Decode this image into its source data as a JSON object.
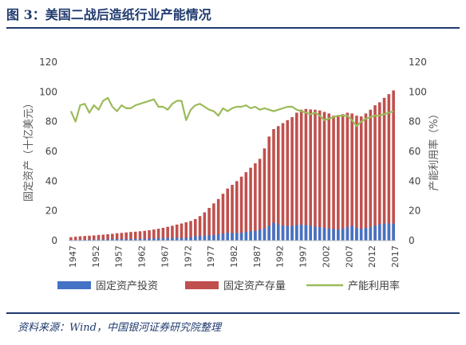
{
  "header": {
    "title": "图 3：美国二战后造纸行业产能情况"
  },
  "footer": {
    "source": "资料来源：Wind，中国银河证券研究院整理"
  },
  "chart_data": {
    "type": "bar",
    "years": [
      1947,
      1948,
      1949,
      1950,
      1951,
      1952,
      1953,
      1954,
      1955,
      1956,
      1957,
      1958,
      1959,
      1960,
      1961,
      1962,
      1963,
      1964,
      1965,
      1966,
      1967,
      1968,
      1969,
      1970,
      1971,
      1972,
      1973,
      1974,
      1975,
      1976,
      1977,
      1978,
      1979,
      1980,
      1981,
      1982,
      1983,
      1984,
      1985,
      1986,
      1987,
      1988,
      1989,
      1990,
      1991,
      1992,
      1993,
      1994,
      1995,
      1996,
      1997,
      1998,
      1999,
      2000,
      2001,
      2002,
      2003,
      2004,
      2005,
      2006,
      2007,
      2008,
      2009,
      2010,
      2011,
      2012,
      2013,
      2014,
      2015,
      2016,
      2017
    ],
    "x_tick_labels": [
      "1947",
      "1952",
      "1957",
      "1962",
      "1967",
      "1972",
      "1977",
      "1982",
      "1987",
      "1992",
      "1997",
      "2002",
      "2007",
      "2012",
      "2017"
    ],
    "left_axis": {
      "label": "固定资产（十亿美元）",
      "range": [
        0,
        120
      ],
      "ticks": [
        "0",
        "20",
        "40",
        "60",
        "80",
        "100",
        "120"
      ]
    },
    "right_axis": {
      "label": "产能利用率（%）",
      "range": [
        0,
        120
      ],
      "ticks": [
        "0",
        "20",
        "40",
        "60",
        "80",
        "100",
        "120"
      ]
    },
    "series": [
      {
        "name": "固定资产投资",
        "color": "#4472c4",
        "axis": "left",
        "type": "bar",
        "values": [
          0.5,
          0.5,
          0.5,
          0.6,
          0.7,
          0.7,
          0.7,
          0.8,
          0.9,
          1.0,
          1.1,
          1.0,
          1.0,
          1.1,
          1.1,
          1.2,
          1.2,
          1.3,
          1.5,
          1.7,
          1.8,
          1.8,
          1.9,
          1.9,
          1.8,
          1.9,
          2.2,
          3.0,
          3.2,
          3.4,
          3.6,
          3.8,
          4.2,
          4.8,
          5.3,
          5.2,
          5.0,
          5.3,
          6.0,
          6.3,
          6.5,
          7.5,
          8.2,
          10.0,
          12.0,
          11.0,
          10.2,
          9.8,
          10.0,
          10.5,
          10.8,
          10.5,
          10.0,
          9.5,
          9.0,
          8.5,
          8.2,
          7.8,
          7.5,
          8.0,
          9.2,
          10.0,
          8.5,
          8.0,
          8.5,
          9.0,
          10.0,
          11.0,
          11.5,
          11.5,
          11.5
        ]
      },
      {
        "name": "固定资产存量",
        "color": "#c0504d",
        "axis": "left",
        "type": "bar",
        "values": [
          2.3,
          2.6,
          2.9,
          3.1,
          3.3,
          3.5,
          3.8,
          4.0,
          4.3,
          4.6,
          5.0,
          5.2,
          5.5,
          5.8,
          6.0,
          6.3,
          6.6,
          7.0,
          7.5,
          8.0,
          8.6,
          9.3,
          10.0,
          10.8,
          11.5,
          12.3,
          13.2,
          14.5,
          16.5,
          19.0,
          22.0,
          25.0,
          28.0,
          31.5,
          35.0,
          37.5,
          40.0,
          43.0,
          46.0,
          49.0,
          52.0,
          55.0,
          62.0,
          70.0,
          75.0,
          77.0,
          79.0,
          81.0,
          83.0,
          86.0,
          88.0,
          88.5,
          88.2,
          88.0,
          87.5,
          86.5,
          85.5,
          84.0,
          83.5,
          85.0,
          86.0,
          85.5,
          84.0,
          83.5,
          85.5,
          88.0,
          91.0,
          93.0,
          96.0,
          98.5,
          101.0
        ]
      },
      {
        "name": "产能利用率",
        "color": "#9bbb59",
        "axis": "right",
        "type": "line",
        "values": [
          87,
          80,
          91,
          92,
          86,
          91,
          88,
          94,
          96,
          90,
          87,
          91,
          89,
          89,
          91,
          92,
          93,
          94,
          95,
          90,
          90,
          88,
          92,
          94,
          94,
          81,
          88,
          91,
          92,
          90,
          88,
          87,
          84,
          89,
          87,
          89,
          90,
          90,
          91,
          89,
          90,
          88,
          89,
          88,
          87,
          88,
          89,
          90,
          90,
          88,
          87,
          86,
          85,
          86,
          84,
          81,
          82,
          83,
          84,
          84,
          84,
          81,
          77,
          80,
          82,
          83,
          84,
          84,
          85,
          86,
          87
        ]
      }
    ],
    "legend_position": "bottom",
    "grid": false
  }
}
